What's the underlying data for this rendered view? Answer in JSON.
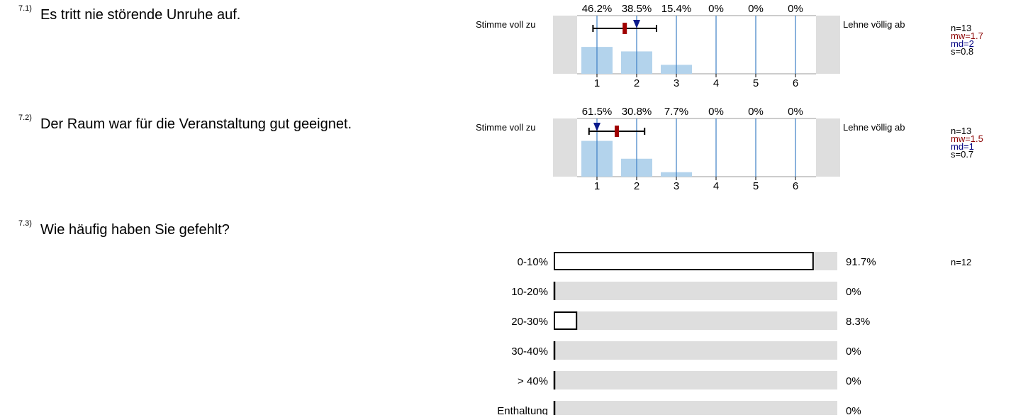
{
  "colors": {
    "grey": "#dedede",
    "bar": "#b3d3ec",
    "grid": "#3c7fc4",
    "mean": "#a00000",
    "median": "#0a1a8c"
  },
  "items": [
    {
      "num": "7.1)",
      "text": "Es tritt nie störende Unruhe auf.",
      "left_label": "Stimme voll zu",
      "right_label": "Lehne völlig ab",
      "n": "n=13",
      "mw": "mw=1.7",
      "md": "md=2",
      "s": "s=0.8"
    },
    {
      "num": "7.2)",
      "text": "Der Raum war für die Veranstaltung gut geeignet.",
      "left_label": "Stimme voll zu",
      "right_label": "Lehne völlig ab",
      "n": "n=13",
      "mw": "mw=1.5",
      "md": "md=1",
      "s": "s=0.7"
    },
    {
      "num": "7.3)",
      "text": "Wie häufig haben Sie gefehlt?",
      "n": "n=12"
    }
  ],
  "chart_data": [
    {
      "type": "bar",
      "categories": [
        "1",
        "2",
        "3",
        "4",
        "5",
        "6"
      ],
      "values": [
        46.2,
        38.5,
        15.4,
        0,
        0,
        0
      ],
      "value_labels": [
        "46.2%",
        "38.5%",
        "15.4%",
        "0%",
        "0%",
        "0%"
      ],
      "mean": 1.7,
      "median": 2,
      "sd": 0.8,
      "whisker": [
        0.9,
        2.5
      ]
    },
    {
      "type": "bar",
      "categories": [
        "1",
        "2",
        "3",
        "4",
        "5",
        "6"
      ],
      "values": [
        61.5,
        30.8,
        7.7,
        0,
        0,
        0
      ],
      "value_labels": [
        "61.5%",
        "30.8%",
        "7.7%",
        "0%",
        "0%",
        "0%"
      ],
      "mean": 1.5,
      "median": 1,
      "sd": 0.7,
      "whisker": [
        0.8,
        2.2
      ]
    },
    {
      "type": "bar",
      "orientation": "horizontal",
      "categories": [
        "0-10%",
        "10-20%",
        "20-30%",
        "30-40%",
        "> 40%",
        "Enthaltung"
      ],
      "values": [
        91.7,
        0,
        8.3,
        0,
        0,
        0
      ],
      "value_labels": [
        "91.7%",
        "0%",
        "8.3%",
        "0%",
        "0%",
        "0%"
      ]
    }
  ]
}
